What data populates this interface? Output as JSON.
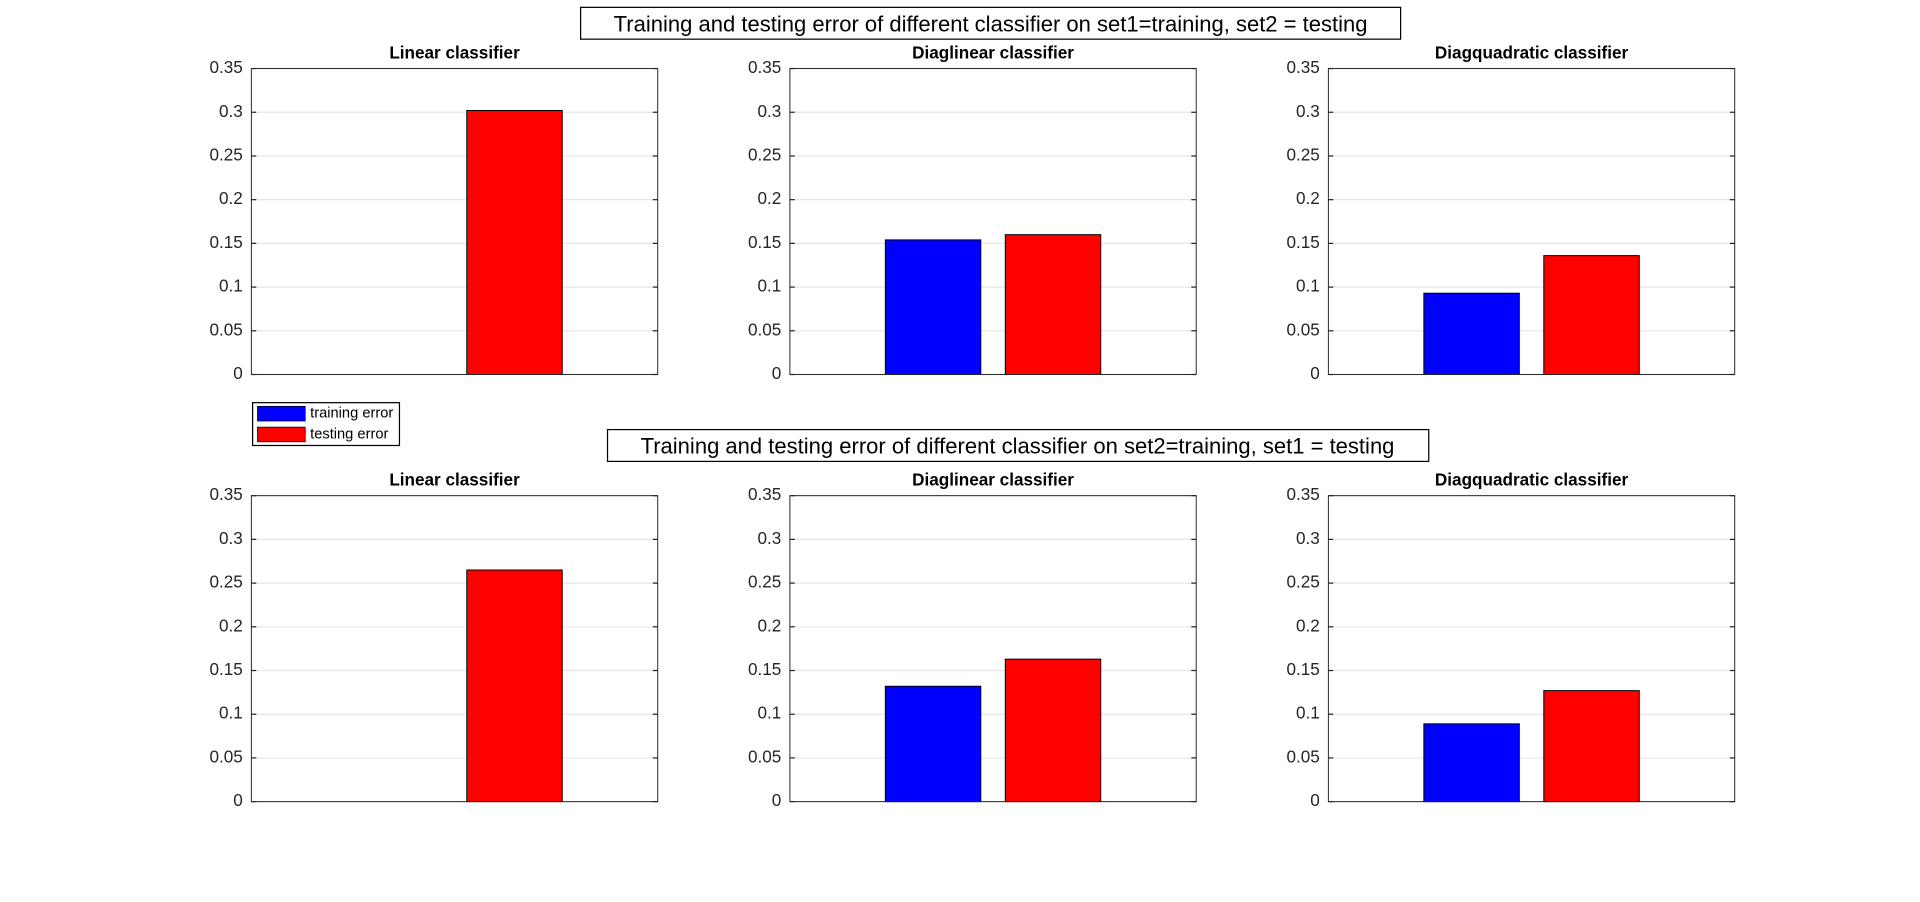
{
  "figure_titles": [
    "Training and testing error of different classifier on set1=training, set2 = testing",
    "Training and testing error of different classifier on set2=training, set1 = testing"
  ],
  "legend": [
    {
      "name": "training error",
      "color": "#0000ff"
    },
    {
      "name": "testing error",
      "color": "#ff0000"
    }
  ],
  "chart_data": [
    {
      "type": "bar",
      "title": "Linear classifier",
      "values": [
        0,
        0.302
      ],
      "ylim": [
        0,
        0.35
      ],
      "yticks": [
        0,
        0.05,
        0.1,
        0.15,
        0.2,
        0.25,
        0.3,
        0.35
      ],
      "grid": true
    },
    {
      "type": "bar",
      "title": "Diaglinear classifier",
      "values": [
        0.154,
        0.16
      ],
      "ylim": [
        0,
        0.35
      ],
      "yticks": [
        0,
        0.05,
        0.1,
        0.15,
        0.2,
        0.25,
        0.3,
        0.35
      ],
      "grid": true
    },
    {
      "type": "bar",
      "title": "Diagquadratic classifier",
      "values": [
        0.093,
        0.136
      ],
      "ylim": [
        0,
        0.35
      ],
      "yticks": [
        0,
        0.05,
        0.1,
        0.15,
        0.2,
        0.25,
        0.3,
        0.35
      ],
      "grid": true
    },
    {
      "type": "bar",
      "title": "Linear classifier",
      "values": [
        0,
        0.265
      ],
      "ylim": [
        0,
        0.35
      ],
      "yticks": [
        0,
        0.05,
        0.1,
        0.15,
        0.2,
        0.25,
        0.3,
        0.35
      ],
      "grid": true
    },
    {
      "type": "bar",
      "title": "Diaglinear classifier",
      "values": [
        0.132,
        0.163
      ],
      "ylim": [
        0,
        0.35
      ],
      "yticks": [
        0,
        0.05,
        0.1,
        0.15,
        0.2,
        0.25,
        0.3,
        0.35
      ],
      "grid": true
    },
    {
      "type": "bar",
      "title": "Diagquadratic classifier",
      "values": [
        0.089,
        0.127
      ],
      "ylim": [
        0,
        0.35
      ],
      "yticks": [
        0,
        0.05,
        0.1,
        0.15,
        0.2,
        0.25,
        0.3,
        0.35
      ],
      "grid": true
    }
  ]
}
